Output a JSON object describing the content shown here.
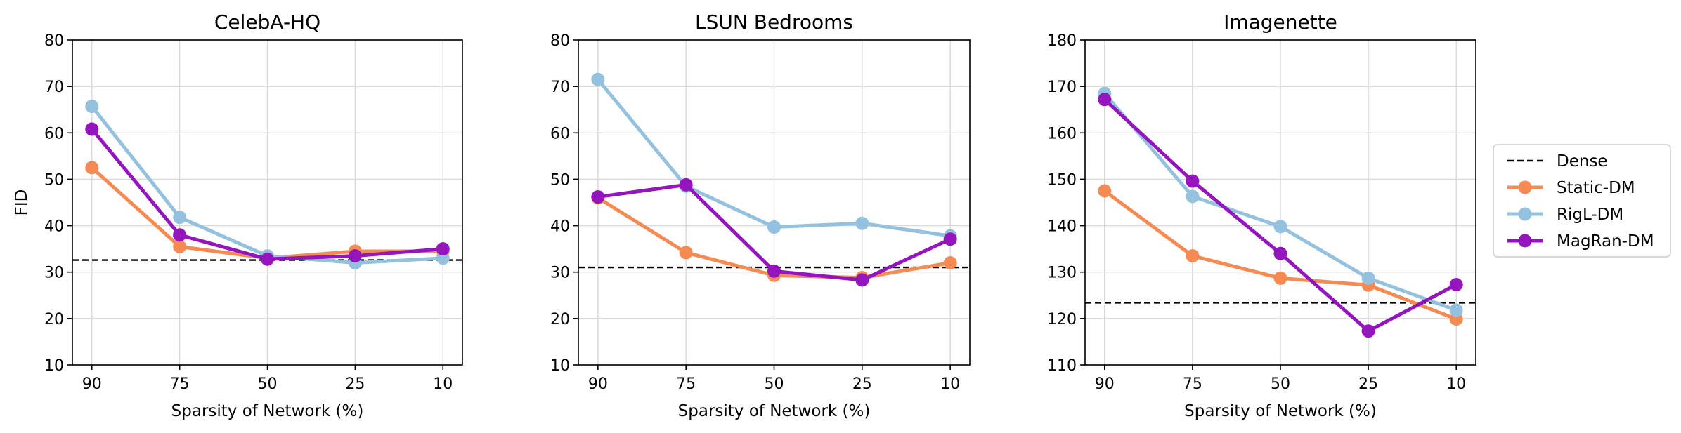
{
  "chart_data": [
    {
      "type": "line",
      "title": "CelebA-HQ",
      "xlabel": "Sparsity of Network (%)",
      "ylabel": "FID",
      "categories": [
        "90",
        "75",
        "50",
        "25",
        "10"
      ],
      "ylim": [
        10,
        80
      ],
      "yticks": [
        10,
        20,
        30,
        40,
        50,
        60,
        70,
        80
      ],
      "grid": true,
      "dense": 32.6,
      "series": [
        {
          "name": "Static-DM",
          "values": [
            52.5,
            35.5,
            33.0,
            34.5,
            34.5
          ]
        },
        {
          "name": "RigL-DM",
          "values": [
            65.7,
            41.8,
            33.5,
            32.0,
            33.0
          ]
        },
        {
          "name": "MagRan-DM",
          "values": [
            60.8,
            38.0,
            32.8,
            33.5,
            35.0
          ]
        }
      ]
    },
    {
      "type": "line",
      "title": "LSUN Bedrooms",
      "xlabel": "Sparsity of Network (%)",
      "ylabel": "",
      "categories": [
        "90",
        "75",
        "50",
        "25",
        "10"
      ],
      "ylim": [
        10,
        80
      ],
      "yticks": [
        10,
        20,
        30,
        40,
        50,
        60,
        70,
        80
      ],
      "grid": true,
      "dense": 31.0,
      "series": [
        {
          "name": "Static-DM",
          "values": [
            46.0,
            34.2,
            29.3,
            28.8,
            32.0
          ]
        },
        {
          "name": "RigL-DM",
          "values": [
            71.5,
            48.5,
            39.7,
            40.5,
            37.8
          ]
        },
        {
          "name": "MagRan-DM",
          "values": [
            46.2,
            48.8,
            30.2,
            28.3,
            37.1
          ]
        }
      ]
    },
    {
      "type": "line",
      "title": "Imagenette",
      "xlabel": "Sparsity of Network (%)",
      "ylabel": "",
      "categories": [
        "90",
        "75",
        "50",
        "25",
        "10"
      ],
      "ylim": [
        110,
        180
      ],
      "yticks": [
        110,
        120,
        130,
        140,
        150,
        160,
        170,
        180
      ],
      "grid": true,
      "dense": 123.4,
      "series": [
        {
          "name": "Static-DM",
          "values": [
            147.5,
            133.5,
            128.7,
            127.2,
            119.9
          ]
        },
        {
          "name": "RigL-DM",
          "values": [
            168.5,
            146.3,
            139.8,
            128.7,
            121.8
          ]
        },
        {
          "name": "MagRan-DM",
          "values": [
            167.2,
            149.6,
            134.0,
            117.3,
            127.3
          ]
        }
      ]
    }
  ],
  "legend": {
    "placement": "right",
    "entries": [
      {
        "label": "Dense",
        "color": "#000000",
        "style": "dashed"
      },
      {
        "label": "Static-DM",
        "color": "#f58b53",
        "style": "line-marker"
      },
      {
        "label": "RigL-DM",
        "color": "#94c1de",
        "style": "line-marker"
      },
      {
        "label": "MagRan-DM",
        "color": "#9414bd",
        "style": "line-marker"
      }
    ]
  },
  "colors": {
    "Static-DM": "#f58b53",
    "RigL-DM": "#94c1de",
    "MagRan-DM": "#9414bd",
    "Dense": "#000000"
  }
}
